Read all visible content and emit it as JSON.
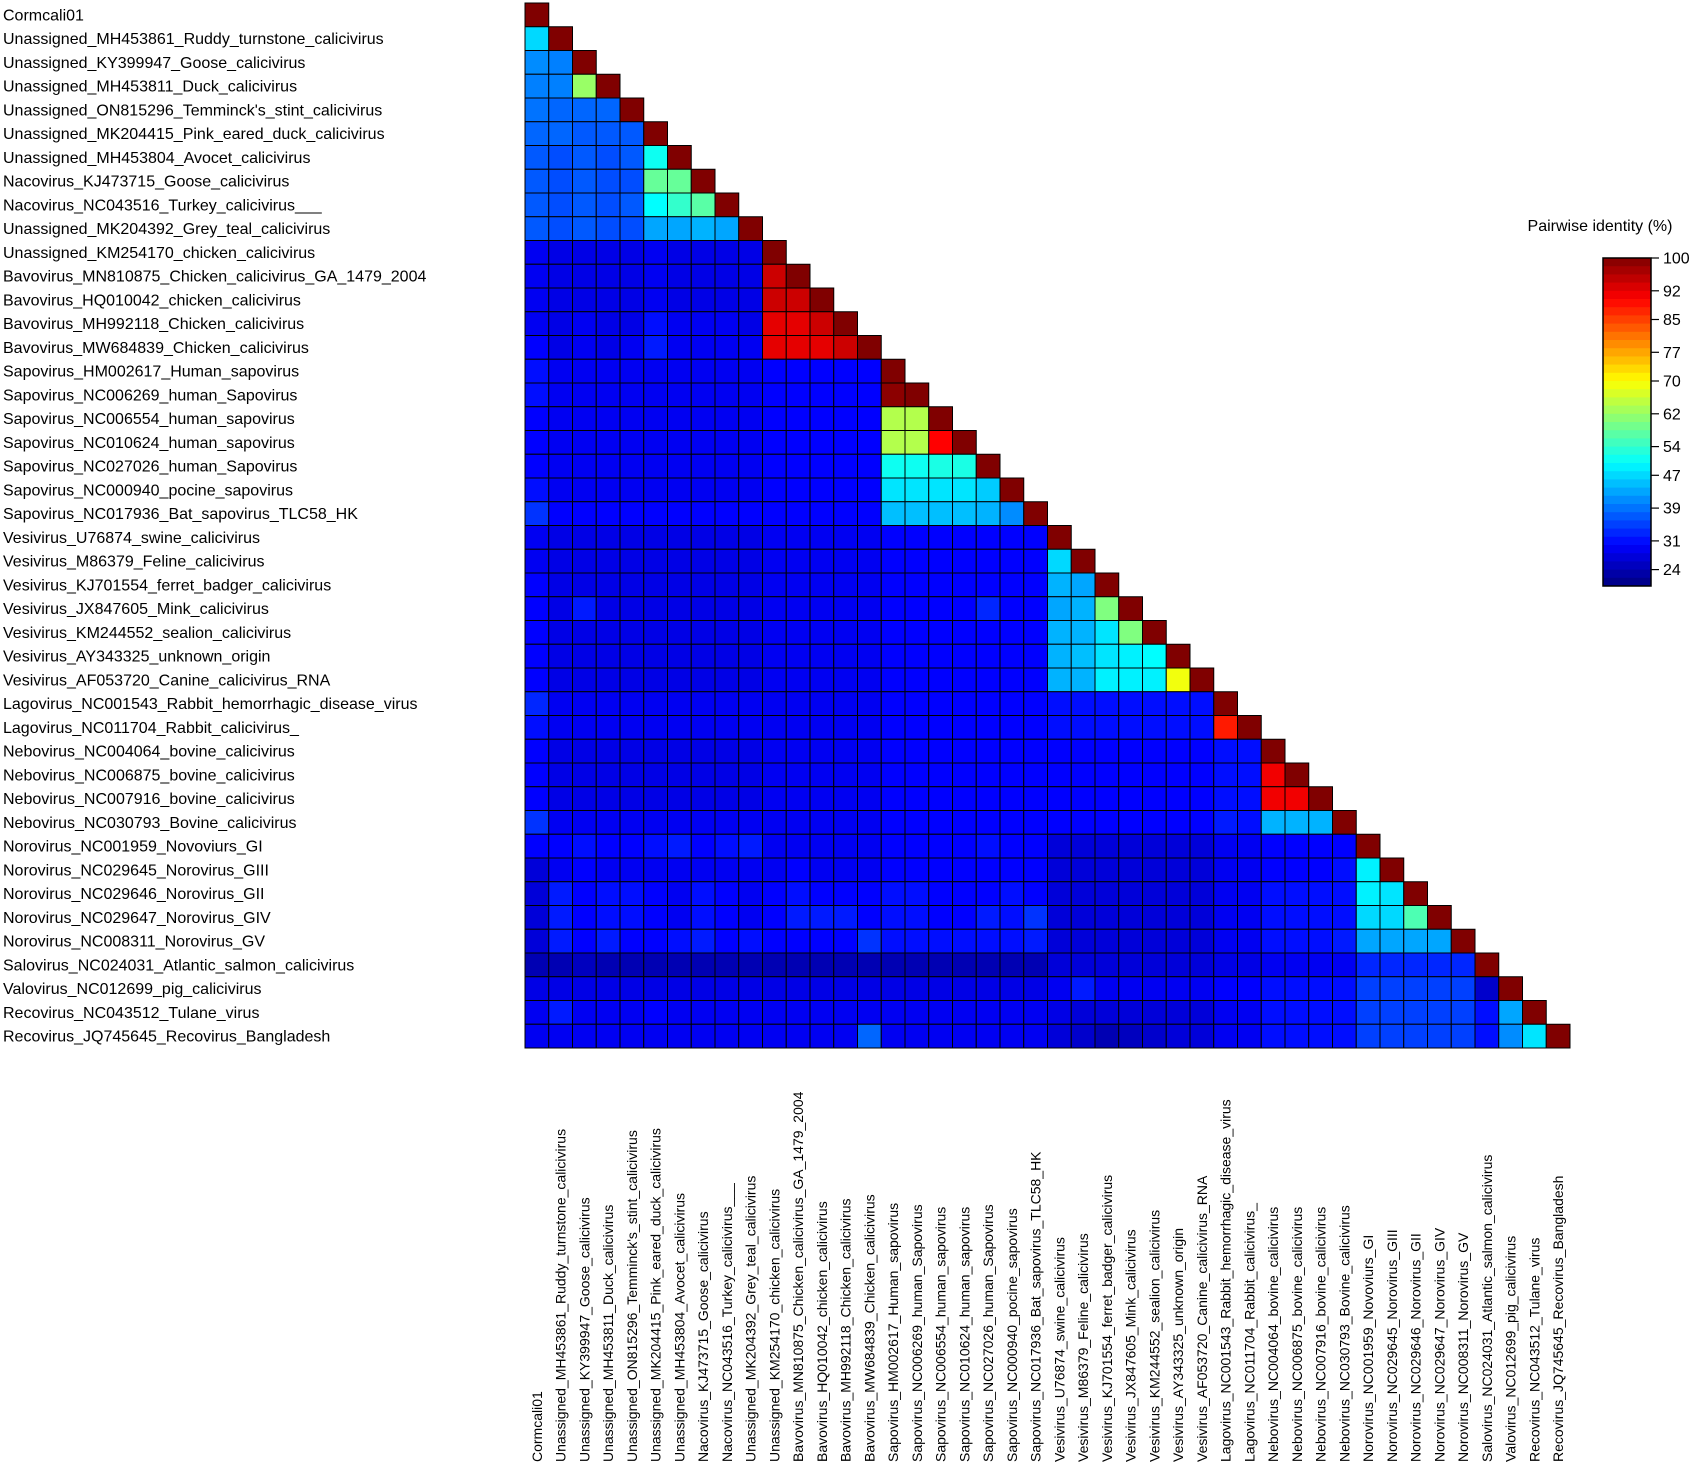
{
  "chart_data": {
    "type": "heatmap",
    "title": "",
    "legend_title": "Pairwise identity (%)",
    "legend_ticks": [
      100,
      92,
      85,
      77,
      70,
      62,
      54,
      47,
      39,
      31,
      24
    ],
    "value_range": [
      20,
      100
    ],
    "colormap": "jet",
    "layout": "lower-triangle",
    "labels": [
      "Cormcali01",
      "Unassigned_MH453861_Ruddy_turnstone_calicivirus",
      "Unassigned_KY399947_Goose_calicivirus",
      "Unassigned_MH453811_Duck_calicivirus",
      "Unassigned_ON815296_Temminck's_stint_calicivirus",
      "Unassigned_MK204415_Pink_eared_duck_calicivirus",
      "Unassigned_MH453804_Avocet_calicivirus",
      "Nacovirus_KJ473715_Goose_calicivirus",
      "Nacovirus_NC043516_Turkey_calicivirus___",
      "Unassigned_MK204392_Grey_teal_calicivirus",
      "Unassigned_KM254170_chicken_calicivirus",
      "Bavovirus_MN810875_Chicken_calicivirus_GA_1479_2004",
      "Bavovirus_HQ010042_chicken_calicivirus",
      "Bavovirus_MH992118_Chicken_calicivirus",
      "Bavovirus_MW684839_Chicken_calicivirus",
      "Sapovirus_HM002617_Human_sapovirus",
      "Sapovirus_NC006269_human_Sapovirus",
      "Sapovirus_NC006554_human_sapovirus",
      "Sapovirus_NC010624_human_sapovirus",
      "Sapovirus_NC027026_human_Sapovirus",
      "Sapovirus_NC000940_pocine_sapovirus",
      "Sapovirus_NC017936_Bat_sapovirus_TLC58_HK",
      "Vesivirus_U76874_swine_calicivirus",
      "Vesivirus_M86379_Feline_calicivirus",
      "Vesivirus_KJ701554_ferret_badger_calicivirus",
      "Vesivirus_JX847605_Mink_calicivirus",
      "Vesivirus_KM244552_sealion_calicivirus",
      "Vesivirus_AY343325_unknown_origin",
      "Vesivirus_AF053720_Canine_calicivirus_RNA",
      "Lagovirus_NC001543_Rabbit_hemorrhagic_disease_virus",
      "Lagovirus_NC011704_Rabbit_calicivirus_",
      "Nebovirus_NC004064_bovine_calicivirus",
      "Nebovirus_NC006875_bovine_calicivirus",
      "Nebovirus_NC007916_bovine_calicivirus",
      "Nebovirus_NC030793_Bovine_calicivirus",
      "Norovirus_NC001959_Novoviurs_GI",
      "Norovirus_NC029645_Norovirus_GIII",
      "Norovirus_NC029646_Norovirus_GII",
      "Norovirus_NC029647_Norovirus_GIV",
      "Norovirus_NC008311_Norovirus_GV",
      "Salovirus_NC024031_Atlantic_salmon_calicivirus",
      "Valovirus_NC012699_pig_calicivirus",
      "Recovirus_NC043512_Tulane_virus",
      "Recovirus_JQ745645_Recovirus_Bangladesh"
    ],
    "matrix": [
      [
        100
      ],
      [
        47,
        100
      ],
      [
        41,
        40,
        100
      ],
      [
        40,
        40,
        62,
        100
      ],
      [
        39,
        38,
        38,
        38,
        100
      ],
      [
        38,
        38,
        37,
        37,
        37,
        100
      ],
      [
        37,
        36,
        37,
        36,
        37,
        51,
        100
      ],
      [
        37,
        36,
        37,
        36,
        36,
        58,
        58,
        100
      ],
      [
        37,
        36,
        37,
        36,
        37,
        50,
        54,
        57,
        100
      ],
      [
        37,
        36,
        37,
        36,
        36,
        43,
        43,
        44,
        43,
        100
      ],
      [
        29,
        28,
        28,
        28,
        28,
        29,
        28,
        28,
        28,
        28,
        100
      ],
      [
        29,
        28,
        28,
        28,
        28,
        29,
        28,
        28,
        28,
        28,
        94,
        100
      ],
      [
        29,
        28,
        28,
        28,
        28,
        29,
        28,
        28,
        28,
        28,
        94,
        94,
        100
      ],
      [
        29,
        28,
        29,
        28,
        28,
        31,
        29,
        29,
        29,
        28,
        92,
        92,
        94,
        100
      ],
      [
        30,
        28,
        29,
        28,
        29,
        32,
        29,
        29,
        29,
        29,
        92,
        92,
        92,
        94,
        100
      ],
      [
        31,
        29,
        29,
        29,
        29,
        29,
        29,
        29,
        29,
        29,
        30,
        30,
        30,
        30,
        30,
        100
      ],
      [
        31,
        29,
        29,
        29,
        29,
        29,
        29,
        29,
        29,
        29,
        30,
        30,
        30,
        30,
        30,
        99,
        100
      ],
      [
        30,
        29,
        29,
        29,
        29,
        29,
        29,
        29,
        29,
        29,
        30,
        30,
        30,
        30,
        30,
        64,
        64,
        100
      ],
      [
        30,
        29,
        29,
        29,
        29,
        29,
        29,
        29,
        29,
        29,
        30,
        30,
        30,
        30,
        30,
        64,
        64,
        90,
        100
      ],
      [
        30,
        29,
        29,
        29,
        29,
        29,
        29,
        29,
        29,
        29,
        30,
        30,
        30,
        30,
        30,
        51,
        51,
        52,
        52,
        100
      ],
      [
        31,
        29,
        29,
        29,
        29,
        29,
        29,
        29,
        29,
        29,
        30,
        30,
        30,
        30,
        30,
        48,
        48,
        48,
        48,
        46,
        100
      ],
      [
        34,
        30,
        30,
        30,
        30,
        30,
        30,
        30,
        30,
        30,
        30,
        30,
        30,
        30,
        30,
        45,
        45,
        45,
        45,
        44,
        41,
        100
      ],
      [
        29,
        28,
        28,
        28,
        28,
        28,
        28,
        28,
        28,
        28,
        29,
        29,
        29,
        29,
        29,
        30,
        30,
        30,
        30,
        30,
        30,
        30,
        100
      ],
      [
        29,
        28,
        28,
        28,
        28,
        28,
        28,
        28,
        28,
        28,
        29,
        29,
        29,
        29,
        29,
        30,
        30,
        30,
        30,
        30,
        30,
        30,
        47,
        100
      ],
      [
        30,
        28,
        28,
        28,
        28,
        28,
        28,
        28,
        28,
        28,
        29,
        29,
        29,
        29,
        29,
        30,
        30,
        30,
        30,
        30,
        30,
        30,
        44,
        43,
        100
      ],
      [
        30,
        28,
        32,
        28,
        28,
        28,
        28,
        28,
        28,
        28,
        29,
        29,
        29,
        29,
        29,
        30,
        30,
        30,
        30,
        33,
        30,
        30,
        43,
        44,
        60,
        100
      ],
      [
        30,
        28,
        28,
        28,
        28,
        28,
        28,
        28,
        28,
        28,
        29,
        29,
        29,
        29,
        29,
        30,
        30,
        30,
        30,
        30,
        30,
        30,
        44,
        44,
        48,
        60,
        100
      ],
      [
        30,
        28,
        28,
        28,
        28,
        28,
        28,
        28,
        28,
        28,
        29,
        29,
        29,
        29,
        29,
        30,
        30,
        30,
        30,
        30,
        30,
        30,
        44,
        45,
        48,
        49,
        50,
        100
      ],
      [
        30,
        28,
        28,
        28,
        28,
        28,
        28,
        28,
        28,
        28,
        29,
        29,
        29,
        29,
        29,
        30,
        30,
        30,
        30,
        30,
        30,
        30,
        44,
        44,
        49,
        49,
        49,
        69,
        100
      ],
      [
        33,
        29,
        29,
        29,
        29,
        29,
        29,
        29,
        29,
        29,
        29,
        29,
        29,
        29,
        29,
        30,
        30,
        30,
        30,
        30,
        30,
        30,
        31,
        31,
        31,
        31,
        31,
        31,
        31,
        100
      ],
      [
        31,
        29,
        29,
        29,
        29,
        29,
        29,
        29,
        29,
        29,
        29,
        29,
        29,
        29,
        29,
        30,
        30,
        30,
        30,
        30,
        30,
        30,
        31,
        31,
        31,
        31,
        31,
        31,
        31,
        88,
        100
      ],
      [
        30,
        28,
        28,
        28,
        28,
        28,
        28,
        28,
        28,
        28,
        29,
        29,
        29,
        29,
        29,
        30,
        30,
        30,
        30,
        30,
        30,
        30,
        30,
        30,
        30,
        30,
        30,
        30,
        30,
        31,
        31,
        100
      ],
      [
        30,
        28,
        28,
        28,
        28,
        28,
        28,
        28,
        28,
        28,
        29,
        29,
        29,
        29,
        29,
        30,
        30,
        30,
        30,
        30,
        30,
        30,
        30,
        30,
        30,
        30,
        30,
        30,
        30,
        31,
        31,
        91,
        100
      ],
      [
        30,
        28,
        28,
        28,
        28,
        28,
        28,
        28,
        28,
        28,
        29,
        29,
        29,
        29,
        29,
        30,
        30,
        30,
        30,
        30,
        30,
        30,
        30,
        30,
        30,
        30,
        30,
        30,
        30,
        31,
        31,
        91,
        91,
        100
      ],
      [
        34,
        29,
        29,
        29,
        29,
        29,
        29,
        29,
        29,
        29,
        29,
        29,
        29,
        29,
        29,
        30,
        30,
        30,
        30,
        30,
        30,
        30,
        30,
        30,
        30,
        30,
        30,
        30,
        30,
        32,
        31,
        44,
        44,
        44,
        100
      ],
      [
        30,
        30,
        31,
        30,
        30,
        31,
        32,
        30,
        31,
        32,
        29,
        29,
        29,
        29,
        29,
        30,
        30,
        30,
        30,
        31,
        30,
        30,
        27,
        27,
        27,
        27,
        27,
        27,
        27,
        29,
        29,
        30,
        30,
        30,
        30,
        100
      ],
      [
        27,
        29,
        30,
        29,
        29,
        29,
        29,
        29,
        29,
        29,
        29,
        30,
        29,
        29,
        29,
        30,
        30,
        30,
        30,
        30,
        30,
        30,
        27,
        27,
        27,
        27,
        27,
        27,
        27,
        29,
        29,
        30,
        30,
        30,
        31,
        49,
        100
      ],
      [
        27,
        32,
        30,
        31,
        31,
        30,
        29,
        31,
        30,
        29,
        30,
        31,
        30,
        30,
        30,
        31,
        31,
        30,
        30,
        30,
        31,
        30,
        27,
        27,
        27,
        27,
        27,
        27,
        27,
        29,
        29,
        31,
        31,
        31,
        31,
        49,
        48,
        100
      ],
      [
        27,
        32,
        30,
        31,
        31,
        30,
        29,
        31,
        30,
        29,
        30,
        32,
        32,
        32,
        30,
        31,
        31,
        30,
        30,
        32,
        31,
        34,
        27,
        27,
        27,
        27,
        27,
        27,
        27,
        29,
        29,
        31,
        31,
        31,
        31,
        47,
        47,
        56,
        100
      ],
      [
        27,
        32,
        30,
        32,
        30,
        30,
        31,
        32,
        30,
        31,
        30,
        30,
        30,
        30,
        34,
        31,
        31,
        31,
        31,
        31,
        31,
        32,
        27,
        27,
        27,
        27,
        27,
        27,
        27,
        29,
        29,
        31,
        31,
        31,
        32,
        43,
        43,
        43,
        43,
        100
      ],
      [
        24,
        24,
        25,
        24,
        24,
        24,
        24,
        24,
        24,
        24,
        24,
        24,
        24,
        24,
        24,
        24,
        24,
        24,
        24,
        24,
        24,
        24,
        27,
        27,
        27,
        27,
        27,
        27,
        27,
        28,
        28,
        29,
        29,
        29,
        29,
        33,
        33,
        33,
        33,
        33,
        100
      ],
      [
        28,
        28,
        28,
        28,
        28,
        28,
        28,
        28,
        28,
        28,
        28,
        28,
        28,
        28,
        28,
        28,
        28,
        28,
        28,
        28,
        28,
        28,
        29,
        32,
        29,
        29,
        29,
        29,
        29,
        30,
        30,
        31,
        31,
        31,
        31,
        35,
        35,
        35,
        35,
        35,
        26,
        100
      ],
      [
        29,
        32,
        29,
        29,
        29,
        30,
        29,
        29,
        29,
        29,
        29,
        29,
        29,
        29,
        29,
        29,
        29,
        29,
        29,
        29,
        29,
        29,
        28,
        27,
        27,
        27,
        27,
        27,
        27,
        29,
        29,
        31,
        31,
        31,
        31,
        35,
        35,
        35,
        35,
        35,
        31,
        43,
        100
      ],
      [
        29,
        29,
        29,
        29,
        29,
        29,
        29,
        29,
        29,
        29,
        29,
        29,
        29,
        29,
        38,
        29,
        29,
        29,
        29,
        29,
        29,
        29,
        27,
        26,
        24,
        25,
        26,
        27,
        27,
        29,
        29,
        31,
        31,
        31,
        31,
        35,
        35,
        35,
        35,
        35,
        31,
        41,
        48,
        100
      ]
    ]
  }
}
